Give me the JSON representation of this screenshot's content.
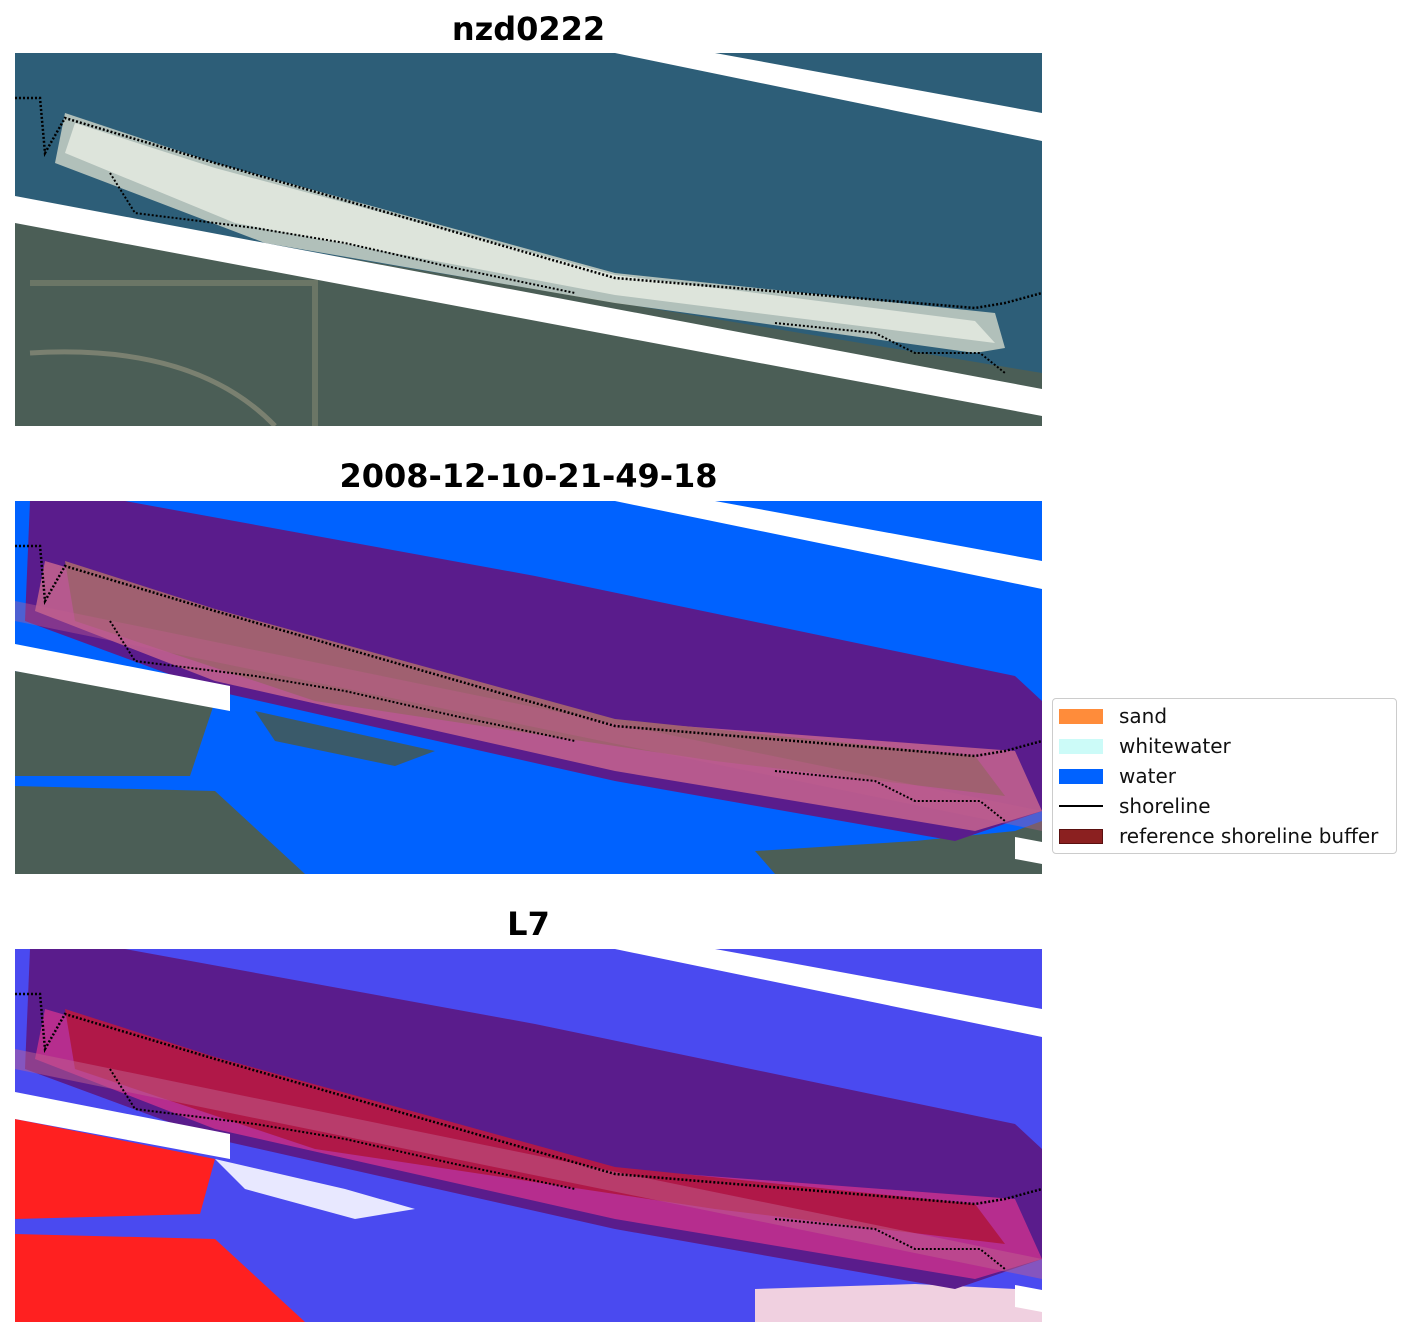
{
  "panels": [
    {
      "title": "nzd0222"
    },
    {
      "title": "2008-12-10-21-49-18"
    },
    {
      "title": "L7"
    }
  ],
  "legend": {
    "items": [
      {
        "label": "sand",
        "color": "#ff8c3a"
      },
      {
        "label": "whitewater",
        "color": "#ccfbf8"
      },
      {
        "label": "water",
        "color": "#0062ff"
      },
      {
        "label": "shoreline",
        "color": "#000000"
      },
      {
        "label": "reference shoreline buffer",
        "color": "#8b2020"
      }
    ]
  },
  "colors": {
    "ocean": "#2d5e78",
    "land": "#4a5f52",
    "beach": "#dfe3db",
    "water_class": "#0062ff",
    "buffer_overlay": "#5a1c8c",
    "buffer_band": "#c0608e",
    "mndwi_water": "#4a4af0",
    "mndwi_land": "#ff2020"
  }
}
